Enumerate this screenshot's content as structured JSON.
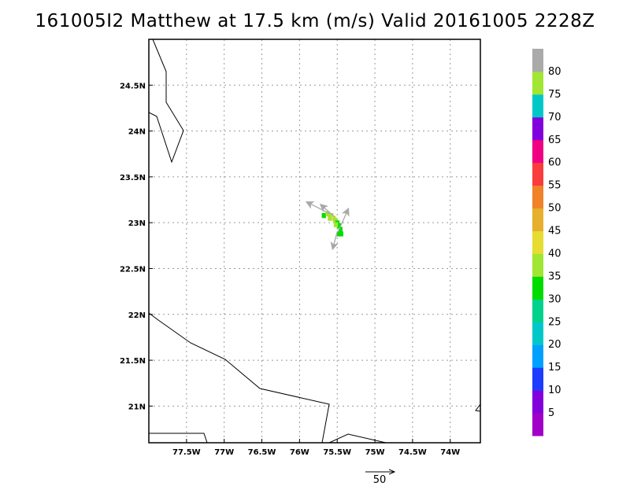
{
  "title": "161005I2 Matthew at 17.5 km (m/s) Valid 20161005 2228Z",
  "chart_data": {
    "type": "heatmap",
    "title": "161005I2 Matthew at 17.5 km (m/s) Valid 20161005 2228Z",
    "units": "m/s",
    "xlim": [
      -78.0,
      -73.6
    ],
    "ylim": [
      20.6,
      25.0
    ],
    "grid": true,
    "x_ticks": [
      {
        "lon": -77.5,
        "label": "77.5W"
      },
      {
        "lon": -77.0,
        "label": "77W"
      },
      {
        "lon": -76.5,
        "label": "76.5W"
      },
      {
        "lon": -76.0,
        "label": "76W"
      },
      {
        "lon": -75.5,
        "label": "75.5W"
      },
      {
        "lon": -75.0,
        "label": "75W"
      },
      {
        "lon": -74.5,
        "label": "74.5W"
      },
      {
        "lon": -74.0,
        "label": "74W"
      }
    ],
    "y_ticks": [
      {
        "lat": 21.0,
        "label": "21N"
      },
      {
        "lat": 21.5,
        "label": "21.5N"
      },
      {
        "lat": 22.0,
        "label": "22N"
      },
      {
        "lat": 22.5,
        "label": "22.5N"
      },
      {
        "lat": 23.0,
        "label": "23N"
      },
      {
        "lat": 23.5,
        "label": "23.5N"
      },
      {
        "lat": 24.0,
        "label": "24N"
      },
      {
        "lat": 24.5,
        "label": "24.5N"
      }
    ],
    "colorbar": {
      "levels": [
        {
          "label": "",
          "color": "#a000c8"
        },
        {
          "label": "5",
          "color": "#8200dc"
        },
        {
          "label": "10",
          "color": "#1e3cff"
        },
        {
          "label": "15",
          "color": "#00a0ff"
        },
        {
          "label": "20",
          "color": "#00c8c8"
        },
        {
          "label": "25",
          "color": "#00d28c"
        },
        {
          "label": "30",
          "color": "#00dc00"
        },
        {
          "label": "35",
          "color": "#a0e632"
        },
        {
          "label": "40",
          "color": "#e6dc32"
        },
        {
          "label": "45",
          "color": "#e6af2d"
        },
        {
          "label": "50",
          "color": "#f08228"
        },
        {
          "label": "55",
          "color": "#fa3c3c"
        },
        {
          "label": "60",
          "color": "#f00082"
        },
        {
          "label": "65",
          "color": "#8200dc"
        },
        {
          "label": "70",
          "color": "#00c8c8"
        },
        {
          "label": "75",
          "color": "#a0e632"
        },
        {
          "label": "80",
          "color": "#aaaaaa"
        }
      ]
    },
    "cells": [
      {
        "lon": -75.68,
        "lat": 23.08,
        "color": "#00dc00"
      },
      {
        "lon": -75.63,
        "lat": 23.1,
        "color": "#a0e632"
      },
      {
        "lon": -75.58,
        "lat": 23.08,
        "color": "#a0e632"
      },
      {
        "lon": -75.6,
        "lat": 23.05,
        "color": "#a0e632"
      },
      {
        "lon": -75.55,
        "lat": 23.05,
        "color": "#e6dc32"
      },
      {
        "lon": -75.53,
        "lat": 23.03,
        "color": "#a0e632"
      },
      {
        "lon": -75.5,
        "lat": 23.0,
        "color": "#00dc00"
      },
      {
        "lon": -75.48,
        "lat": 22.97,
        "color": "#00dc00"
      },
      {
        "lon": -75.46,
        "lat": 22.93,
        "color": "#00dc00"
      },
      {
        "lon": -75.45,
        "lat": 22.88,
        "color": "#00dc00"
      },
      {
        "lon": -75.48,
        "lat": 22.88,
        "color": "#00dc00"
      },
      {
        "lon": -75.52,
        "lat": 22.98,
        "color": "#a0e632"
      }
    ],
    "wind_vectors": [
      {
        "lon": -75.6,
        "lat": 23.1,
        "u": -40,
        "v": 20
      },
      {
        "lon": -75.53,
        "lat": 23.06,
        "u": -25,
        "v": 22
      },
      {
        "lon": -75.49,
        "lat": 22.9,
        "u": 18,
        "v": 40
      },
      {
        "lon": -75.5,
        "lat": 22.9,
        "u": -8,
        "v": -30
      }
    ],
    "reference_vector": {
      "label": "50",
      "value": 50
    }
  }
}
